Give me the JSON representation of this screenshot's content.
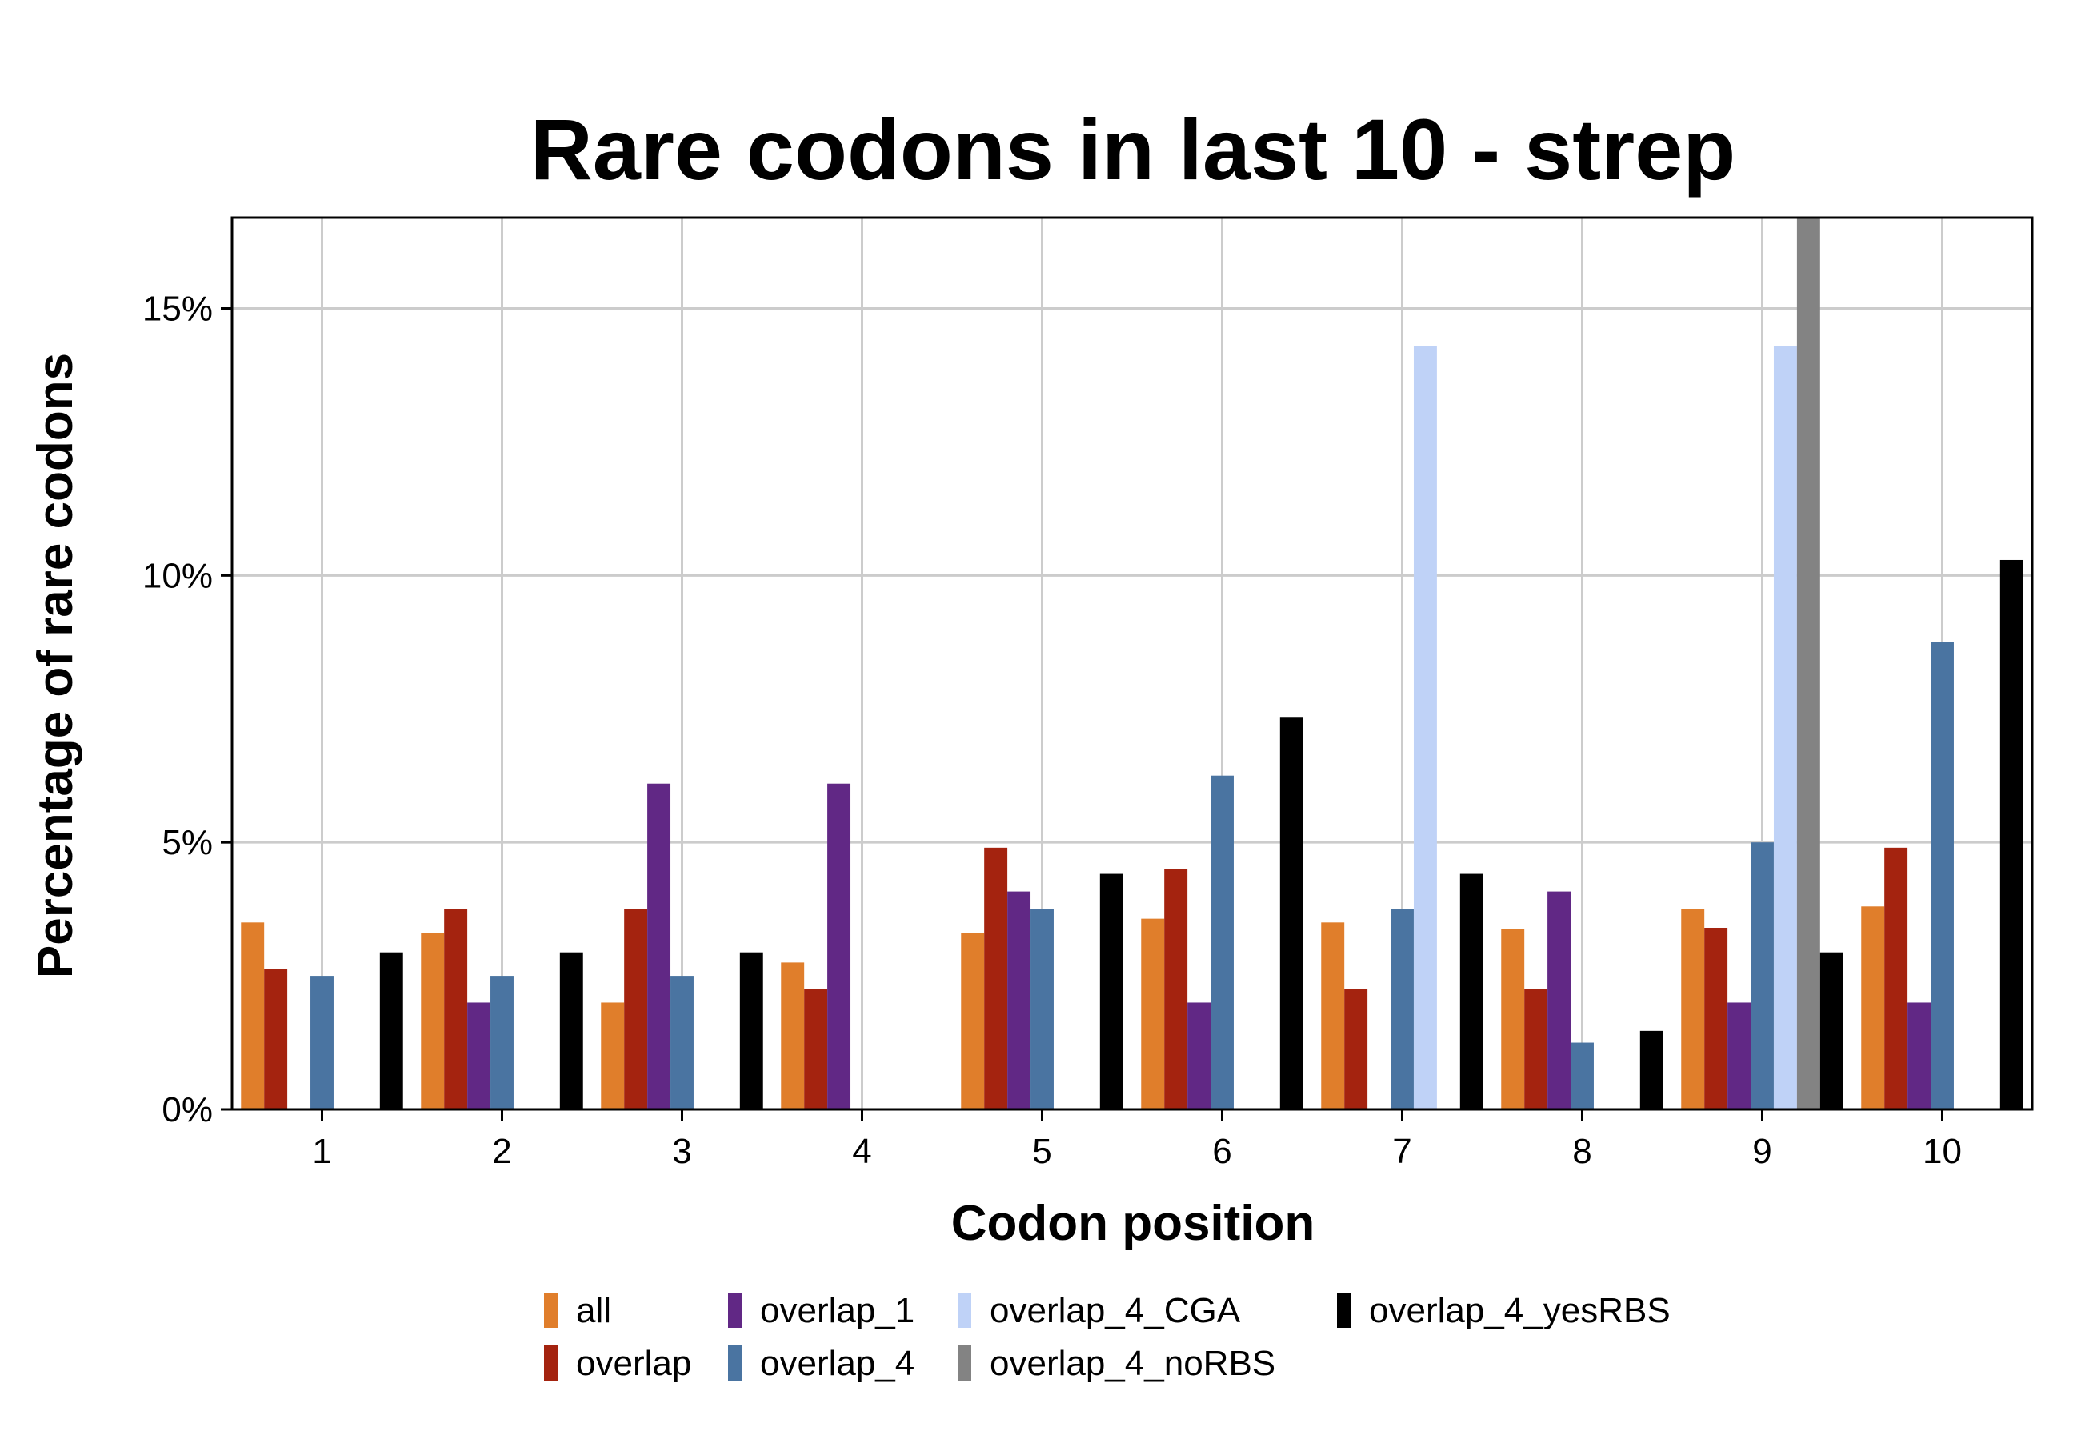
{
  "chart_data": {
    "type": "bar",
    "title": "Rare codons in last 10 - strep",
    "xlabel": "Codon position",
    "ylabel": "Percentage of rare codons",
    "ylim": [
      0,
      16.7
    ],
    "yticks": [
      0,
      5,
      10,
      15
    ],
    "ytick_labels": [
      "0%",
      "5%",
      "10%",
      "15%"
    ],
    "categories": [
      "1",
      "2",
      "3",
      "4",
      "5",
      "6",
      "7",
      "8",
      "9",
      "10"
    ],
    "grid": true,
    "legend_position": "bottom",
    "series": [
      {
        "name": "all",
        "color": "#E07E2B",
        "values": [
          3.5,
          3.3,
          2.0,
          2.75,
          3.3,
          3.57,
          3.5,
          3.37,
          3.75,
          3.8
        ]
      },
      {
        "name": "overlap",
        "color": "#A4230F",
        "values": [
          2.63,
          3.75,
          3.75,
          2.25,
          4.9,
          4.5,
          2.25,
          2.25,
          3.4,
          4.9
        ]
      },
      {
        "name": "overlap_1",
        "color": "#612885",
        "values": [
          0,
          2.0,
          6.1,
          6.1,
          4.08,
          2.0,
          0,
          4.08,
          2.0,
          2.0
        ]
      },
      {
        "name": "overlap_4",
        "color": "#4A74A1",
        "values": [
          2.5,
          2.5,
          2.5,
          0,
          3.75,
          6.25,
          3.75,
          1.25,
          5.0,
          8.75
        ]
      },
      {
        "name": "overlap_4_CGA",
        "color": "#BFD2F7",
        "values": [
          0,
          0,
          0,
          0,
          0,
          0,
          14.3,
          0,
          14.3,
          0
        ]
      },
      {
        "name": "overlap_4_noRBS",
        "color": "#838383",
        "values": [
          0,
          0,
          0,
          0,
          0,
          0,
          0,
          0,
          16.7,
          0
        ]
      },
      {
        "name": "overlap_4_yesRBS",
        "color": "#000000",
        "values": [
          2.94,
          2.94,
          2.94,
          0,
          4.41,
          7.35,
          4.41,
          1.47,
          2.94,
          10.29
        ]
      }
    ]
  }
}
